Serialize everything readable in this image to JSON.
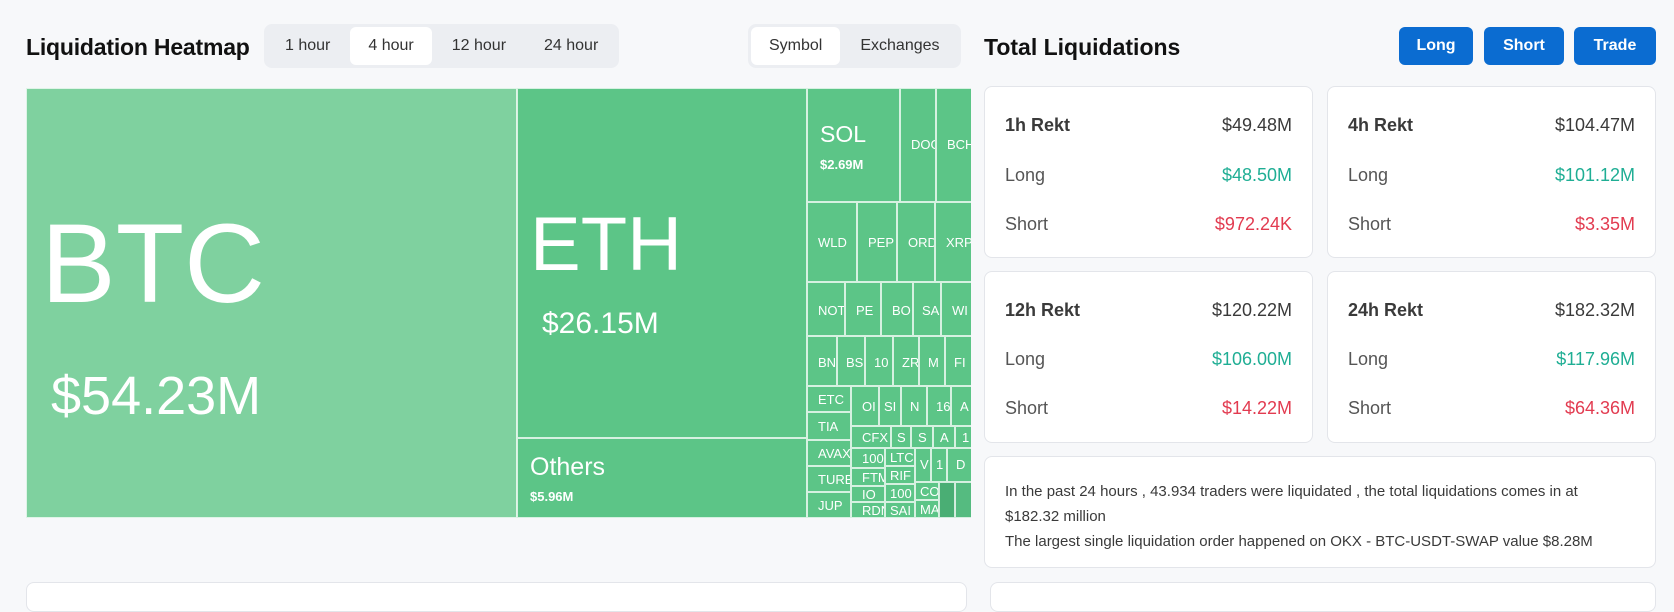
{
  "heatmap": {
    "title": "Liquidation Heatmap",
    "time_options": [
      "1 hour",
      "4 hour",
      "12 hour",
      "24 hour"
    ],
    "active_time": "4 hour",
    "view_options": [
      "Symbol",
      "Exchanges"
    ],
    "active_view": "Symbol",
    "tiles": {
      "btc": {
        "symbol": "BTC",
        "value": "$54.23M"
      },
      "eth": {
        "symbol": "ETH",
        "value": "$26.15M"
      },
      "others": {
        "symbol": "Others",
        "value": "$5.96M"
      },
      "sol": {
        "symbol": "SOL",
        "value": "$2.69M"
      }
    },
    "small_labels": {
      "doge": "DOG",
      "bch": "BCH",
      "wld": "WLD",
      "pepe": "PEP",
      "ordi": "ORD",
      "xrp": "XRP",
      "not": "NOT",
      "pe": "PE",
      "bo": "BO",
      "sa": "SA",
      "wi": "WI",
      "bn": "BN",
      "bs": "BS",
      "n10": "10",
      "zr": "ZR",
      "m": "M",
      "fi": "FI",
      "etc": "ETC",
      "tia": "TIA",
      "avax": "AVAX",
      "turbo": "TURB",
      "jup": "JUP",
      "o1": "OI",
      "s1": "SI",
      "n1": "N",
      "n16": "16",
      "a1": "A",
      "cfx": "CFX",
      "s2": "S",
      "s3": "S",
      "a2": "A",
      "n1b": "1",
      "n100": "100",
      "ltc": "LTC",
      "v": "V",
      "n1c": "1",
      "d": "D",
      "ftm": "FTM",
      "rif": "RIF",
      "io": "IO",
      "n100b": "100",
      "cc": "CO",
      "rdn": "RDN",
      "sai": "SAI",
      "ma": "MA"
    }
  },
  "total": {
    "title": "Total Liquidations",
    "buttons": {
      "long": "Long",
      "short": "Short",
      "trade": "Trade"
    },
    "cards": [
      {
        "period": "1h Rekt",
        "total": "$49.48M",
        "long_label": "Long",
        "long": "$48.50M",
        "short_label": "Short",
        "short": "$972.24K"
      },
      {
        "period": "4h Rekt",
        "total": "$104.47M",
        "long_label": "Long",
        "long": "$101.12M",
        "short_label": "Short",
        "short": "$3.35M"
      },
      {
        "period": "12h Rekt",
        "total": "$120.22M",
        "long_label": "Long",
        "long": "$106.00M",
        "short_label": "Short",
        "short": "$14.22M"
      },
      {
        "period": "24h Rekt",
        "total": "$182.32M",
        "long_label": "Long",
        "long": "$117.96M",
        "short_label": "Short",
        "short": "$64.36M"
      }
    ],
    "summary_line1": "In the past 24 hours , 43.934 traders were liquidated , the total liquidations comes in at $182.32 million",
    "summary_line2": "The largest single liquidation order happened on OKX - BTC-USDT-SWAP value $8.28M"
  },
  "colors": {
    "accent": "#0b6cd1",
    "long": "#1fae94",
    "short": "#e23b50",
    "tile_light": "#7fd19f",
    "tile_mid": "#5cc587"
  }
}
